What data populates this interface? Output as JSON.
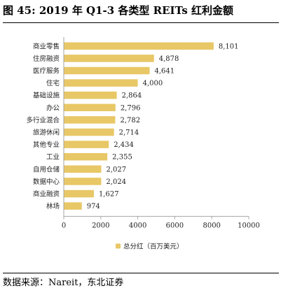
{
  "title": "图 45: 2019 年 Q1-3 各类型 REITs 红利金额",
  "source": "数据来源：Nareit，东北证券",
  "chart_data": {
    "type": "bar",
    "orientation": "horizontal",
    "categories": [
      "商业零售",
      "住房融资",
      "医疗服务",
      "住宅",
      "基础设施",
      "办公",
      "多行业混合",
      "旅游休闲",
      "其他专业",
      "工业",
      "自用仓储",
      "数据中心",
      "商业融资",
      "林场"
    ],
    "series": [
      {
        "name": "总分红（百万美元）",
        "values": [
          8101,
          4878,
          4641,
          4000,
          2864,
          2796,
          2782,
          2714,
          2434,
          2355,
          2027,
          2024,
          1627,
          974
        ],
        "color": "#e8c766"
      }
    ],
    "value_labels": [
      "8,101",
      "4,878",
      "4,641",
      "4,000",
      "2,864",
      "2,796",
      "2,782",
      "2,714",
      "2,434",
      "2,355",
      "2,027",
      "2,024",
      "1,627",
      "974"
    ],
    "xlim": [
      0,
      10000
    ],
    "xticks": [
      0,
      2000,
      4000,
      6000,
      8000,
      10000
    ],
    "grid": false,
    "legend_position": "bottom-center",
    "axis_color": "#a6a6a6"
  }
}
